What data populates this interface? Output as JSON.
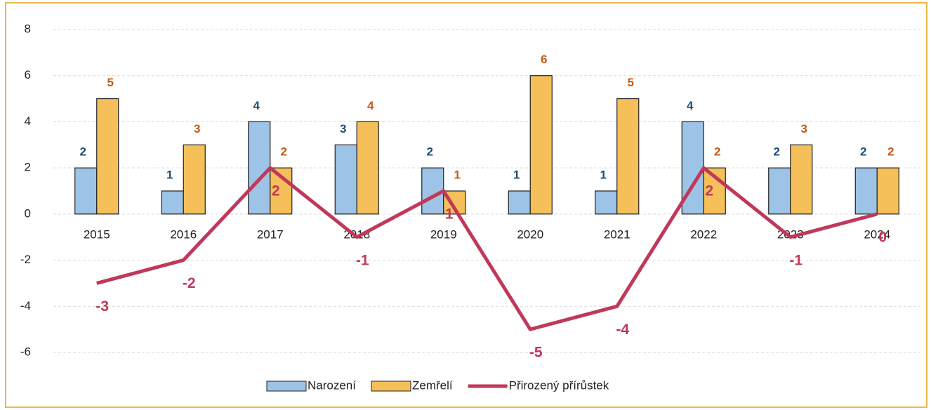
{
  "chart_data": {
    "type": "bar-line",
    "categories": [
      "2015",
      "2016",
      "2017",
      "2018",
      "2019",
      "2020",
      "2021",
      "2022",
      "2023",
      "2024"
    ],
    "series": [
      {
        "name": "Narození",
        "type": "bar",
        "color": "#9dc3e6",
        "label_color": "#1f4e79",
        "values": [
          2,
          1,
          4,
          3,
          2,
          1,
          1,
          4,
          2,
          2
        ]
      },
      {
        "name": "Zemřelí",
        "type": "bar",
        "color": "#f5c05a",
        "label_color": "#c55a11",
        "values": [
          5,
          3,
          2,
          4,
          1,
          6,
          5,
          2,
          3,
          2
        ]
      },
      {
        "name": "Přirozený přírůstek",
        "type": "line",
        "color": "#c0385a",
        "label_color": "#c0385a",
        "values": [
          -3,
          -2,
          2,
          -1,
          1,
          -5,
          -4,
          2,
          -1,
          0
        ]
      }
    ],
    "ylim": [
      -6,
      8
    ],
    "yticks": [
      -6,
      -4,
      -2,
      0,
      2,
      4,
      6,
      8
    ],
    "grid": true
  }
}
